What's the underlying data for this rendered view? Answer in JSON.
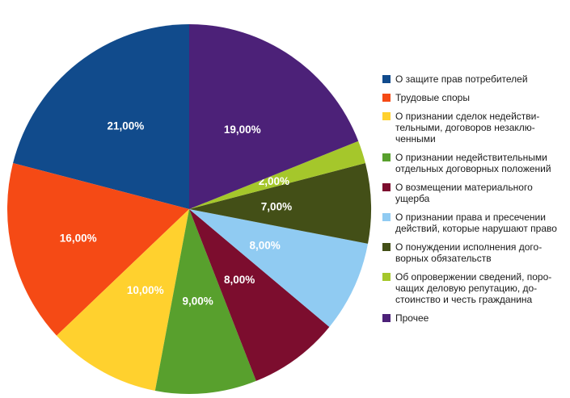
{
  "chart_data": {
    "type": "pie",
    "legend_position": "right",
    "direction": "counterclockwise_from_top",
    "value_unit": "%",
    "total": 100,
    "series": [
      {
        "label": "О защите прав потребителей",
        "value": 21,
        "display": "21,00%",
        "color": "#114B8C"
      },
      {
        "label": "Трудовые споры",
        "value": 16,
        "display": "16,00%",
        "color": "#F54A15"
      },
      {
        "label": "О признании сделок недействи-\nтельными, договоров незаклю-\nченными",
        "value": 10,
        "display": "10,00%",
        "color": "#FFD12E"
      },
      {
        "label": "О признании недействительными\nотдельных договорных положений",
        "value": 9,
        "display": "9,00%",
        "color": "#58A02D"
      },
      {
        "label": "О возмещении материального\nущерба",
        "value": 8,
        "display": "8,00%",
        "color": "#7C0D2E"
      },
      {
        "label": "О признании права и пресечении\nдействий, которые нарушают право",
        "value": 8,
        "display": "8,00%",
        "color": "#90CBF2"
      },
      {
        "label": "О понуждении исполнения дого-\nворных обязательств",
        "value": 7,
        "display": "7,00%",
        "color": "#434F17"
      },
      {
        "label": "Об опровержении сведений, поро-\nчащих деловую репутацию, до-\nстоинство и честь гражданина",
        "value": 2,
        "display": "2,00%",
        "color": "#A5C72B"
      },
      {
        "label": "Прочее",
        "value": 19,
        "display": "19,00%",
        "color": "#4C2178"
      }
    ]
  }
}
